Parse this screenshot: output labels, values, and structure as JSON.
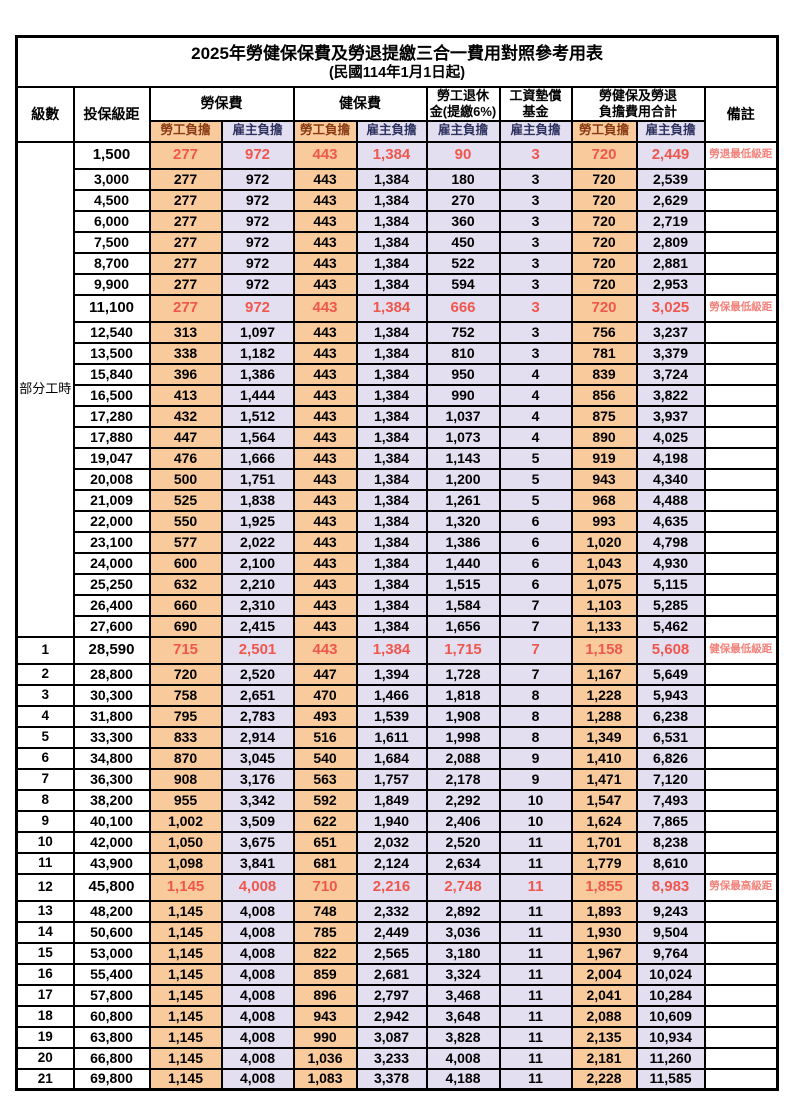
{
  "title": "2025年勞健保保費及勞退提繳三合一費用對照參考用表",
  "subtitle": "(民國114年1月1日起)",
  "colors": {
    "employee_bg": "#F9CB9C",
    "employer_bg": "#E3DFF1",
    "highlight_text": "#EF574D",
    "remark_text": "#F2837C",
    "employee_header_text": "#8A3B12",
    "employer_header_text": "#2E3260"
  },
  "header": {
    "level": "級數",
    "bracket": "投保級距",
    "labor_insurance": "勞保費",
    "health_insurance": "健保費",
    "pension_line1": "勞工退休",
    "pension_line2": "金(提繳6%)",
    "wage_fund_line1": "工資墊償",
    "wage_fund_line2": "基金",
    "total_line1": "勞健保及勞退",
    "total_line2": "負擔費用合計",
    "remark": "備註",
    "employee": "勞工負擔",
    "employer": "雇主負擔"
  },
  "part_time_label": "部分工時",
  "part_time_rowspan": 23,
  "rows": [
    {
      "level": "",
      "bracket": "1,500",
      "values": [
        "277",
        "972",
        "443",
        "1,384",
        "90",
        "3",
        "720",
        "2,449"
      ],
      "remark": "勞退最低級距",
      "hl": true
    },
    {
      "level": "",
      "bracket": "3,000",
      "values": [
        "277",
        "972",
        "443",
        "1,384",
        "180",
        "3",
        "720",
        "2,539"
      ],
      "remark": "",
      "hl": false
    },
    {
      "level": "",
      "bracket": "4,500",
      "values": [
        "277",
        "972",
        "443",
        "1,384",
        "270",
        "3",
        "720",
        "2,629"
      ],
      "remark": "",
      "hl": false
    },
    {
      "level": "",
      "bracket": "6,000",
      "values": [
        "277",
        "972",
        "443",
        "1,384",
        "360",
        "3",
        "720",
        "2,719"
      ],
      "remark": "",
      "hl": false
    },
    {
      "level": "",
      "bracket": "7,500",
      "values": [
        "277",
        "972",
        "443",
        "1,384",
        "450",
        "3",
        "720",
        "2,809"
      ],
      "remark": "",
      "hl": false
    },
    {
      "level": "",
      "bracket": "8,700",
      "values": [
        "277",
        "972",
        "443",
        "1,384",
        "522",
        "3",
        "720",
        "2,881"
      ],
      "remark": "",
      "hl": false
    },
    {
      "level": "",
      "bracket": "9,900",
      "values": [
        "277",
        "972",
        "443",
        "1,384",
        "594",
        "3",
        "720",
        "2,953"
      ],
      "remark": "",
      "hl": false
    },
    {
      "level": "",
      "bracket": "11,100",
      "values": [
        "277",
        "972",
        "443",
        "1,384",
        "666",
        "3",
        "720",
        "3,025"
      ],
      "remark": "勞保最低級距",
      "hl": true
    },
    {
      "level": "",
      "bracket": "12,540",
      "values": [
        "313",
        "1,097",
        "443",
        "1,384",
        "752",
        "3",
        "756",
        "3,237"
      ],
      "remark": "",
      "hl": false
    },
    {
      "level": "",
      "bracket": "13,500",
      "values": [
        "338",
        "1,182",
        "443",
        "1,384",
        "810",
        "3",
        "781",
        "3,379"
      ],
      "remark": "",
      "hl": false
    },
    {
      "level": "",
      "bracket": "15,840",
      "values": [
        "396",
        "1,386",
        "443",
        "1,384",
        "950",
        "4",
        "839",
        "3,724"
      ],
      "remark": "",
      "hl": false
    },
    {
      "level": "",
      "bracket": "16,500",
      "values": [
        "413",
        "1,444",
        "443",
        "1,384",
        "990",
        "4",
        "856",
        "3,822"
      ],
      "remark": "",
      "hl": false
    },
    {
      "level": "",
      "bracket": "17,280",
      "values": [
        "432",
        "1,512",
        "443",
        "1,384",
        "1,037",
        "4",
        "875",
        "3,937"
      ],
      "remark": "",
      "hl": false
    },
    {
      "level": "",
      "bracket": "17,880",
      "values": [
        "447",
        "1,564",
        "443",
        "1,384",
        "1,073",
        "4",
        "890",
        "4,025"
      ],
      "remark": "",
      "hl": false
    },
    {
      "level": "",
      "bracket": "19,047",
      "values": [
        "476",
        "1,666",
        "443",
        "1,384",
        "1,143",
        "5",
        "919",
        "4,198"
      ],
      "remark": "",
      "hl": false
    },
    {
      "level": "",
      "bracket": "20,008",
      "values": [
        "500",
        "1,751",
        "443",
        "1,384",
        "1,200",
        "5",
        "943",
        "4,340"
      ],
      "remark": "",
      "hl": false
    },
    {
      "level": "",
      "bracket": "21,009",
      "values": [
        "525",
        "1,838",
        "443",
        "1,384",
        "1,261",
        "5",
        "968",
        "4,488"
      ],
      "remark": "",
      "hl": false
    },
    {
      "level": "",
      "bracket": "22,000",
      "values": [
        "550",
        "1,925",
        "443",
        "1,384",
        "1,320",
        "6",
        "993",
        "4,635"
      ],
      "remark": "",
      "hl": false
    },
    {
      "level": "",
      "bracket": "23,100",
      "values": [
        "577",
        "2,022",
        "443",
        "1,384",
        "1,386",
        "6",
        "1,020",
        "4,798"
      ],
      "remark": "",
      "hl": false
    },
    {
      "level": "",
      "bracket": "24,000",
      "values": [
        "600",
        "2,100",
        "443",
        "1,384",
        "1,440",
        "6",
        "1,043",
        "4,930"
      ],
      "remark": "",
      "hl": false
    },
    {
      "level": "",
      "bracket": "25,250",
      "values": [
        "632",
        "2,210",
        "443",
        "1,384",
        "1,515",
        "6",
        "1,075",
        "5,115"
      ],
      "remark": "",
      "hl": false
    },
    {
      "level": "",
      "bracket": "26,400",
      "values": [
        "660",
        "2,310",
        "443",
        "1,384",
        "1,584",
        "7",
        "1,103",
        "5,285"
      ],
      "remark": "",
      "hl": false
    },
    {
      "level": "",
      "bracket": "27,600",
      "values": [
        "690",
        "2,415",
        "443",
        "1,384",
        "1,656",
        "7",
        "1,133",
        "5,462"
      ],
      "remark": "",
      "hl": false
    },
    {
      "level": "1",
      "bracket": "28,590",
      "values": [
        "715",
        "2,501",
        "443",
        "1,384",
        "1,715",
        "7",
        "1,158",
        "5,608"
      ],
      "remark": "健保最低級距",
      "hl": true
    },
    {
      "level": "2",
      "bracket": "28,800",
      "values": [
        "720",
        "2,520",
        "447",
        "1,394",
        "1,728",
        "7",
        "1,167",
        "5,649"
      ],
      "remark": "",
      "hl": false
    },
    {
      "level": "3",
      "bracket": "30,300",
      "values": [
        "758",
        "2,651",
        "470",
        "1,466",
        "1,818",
        "8",
        "1,228",
        "5,943"
      ],
      "remark": "",
      "hl": false
    },
    {
      "level": "4",
      "bracket": "31,800",
      "values": [
        "795",
        "2,783",
        "493",
        "1,539",
        "1,908",
        "8",
        "1,288",
        "6,238"
      ],
      "remark": "",
      "hl": false
    },
    {
      "level": "5",
      "bracket": "33,300",
      "values": [
        "833",
        "2,914",
        "516",
        "1,611",
        "1,998",
        "8",
        "1,349",
        "6,531"
      ],
      "remark": "",
      "hl": false
    },
    {
      "level": "6",
      "bracket": "34,800",
      "values": [
        "870",
        "3,045",
        "540",
        "1,684",
        "2,088",
        "9",
        "1,410",
        "6,826"
      ],
      "remark": "",
      "hl": false
    },
    {
      "level": "7",
      "bracket": "36,300",
      "values": [
        "908",
        "3,176",
        "563",
        "1,757",
        "2,178",
        "9",
        "1,471",
        "7,120"
      ],
      "remark": "",
      "hl": false
    },
    {
      "level": "8",
      "bracket": "38,200",
      "values": [
        "955",
        "3,342",
        "592",
        "1,849",
        "2,292",
        "10",
        "1,547",
        "7,493"
      ],
      "remark": "",
      "hl": false
    },
    {
      "level": "9",
      "bracket": "40,100",
      "values": [
        "1,002",
        "3,509",
        "622",
        "1,940",
        "2,406",
        "10",
        "1,624",
        "7,865"
      ],
      "remark": "",
      "hl": false
    },
    {
      "level": "10",
      "bracket": "42,000",
      "values": [
        "1,050",
        "3,675",
        "651",
        "2,032",
        "2,520",
        "11",
        "1,701",
        "8,238"
      ],
      "remark": "",
      "hl": false
    },
    {
      "level": "11",
      "bracket": "43,900",
      "values": [
        "1,098",
        "3,841",
        "681",
        "2,124",
        "2,634",
        "11",
        "1,779",
        "8,610"
      ],
      "remark": "",
      "hl": false
    },
    {
      "level": "12",
      "bracket": "45,800",
      "values": [
        "1,145",
        "4,008",
        "710",
        "2,216",
        "2,748",
        "11",
        "1,855",
        "8,983"
      ],
      "remark": "勞保最高級距",
      "hl": true
    },
    {
      "level": "13",
      "bracket": "48,200",
      "values": [
        "1,145",
        "4,008",
        "748",
        "2,332",
        "2,892",
        "11",
        "1,893",
        "9,243"
      ],
      "remark": "",
      "hl": false
    },
    {
      "level": "14",
      "bracket": "50,600",
      "values": [
        "1,145",
        "4,008",
        "785",
        "2,449",
        "3,036",
        "11",
        "1,930",
        "9,504"
      ],
      "remark": "",
      "hl": false
    },
    {
      "level": "15",
      "bracket": "53,000",
      "values": [
        "1,145",
        "4,008",
        "822",
        "2,565",
        "3,180",
        "11",
        "1,967",
        "9,764"
      ],
      "remark": "",
      "hl": false
    },
    {
      "level": "16",
      "bracket": "55,400",
      "values": [
        "1,145",
        "4,008",
        "859",
        "2,681",
        "3,324",
        "11",
        "2,004",
        "10,024"
      ],
      "remark": "",
      "hl": false
    },
    {
      "level": "17",
      "bracket": "57,800",
      "values": [
        "1,145",
        "4,008",
        "896",
        "2,797",
        "3,468",
        "11",
        "2,041",
        "10,284"
      ],
      "remark": "",
      "hl": false
    },
    {
      "level": "18",
      "bracket": "60,800",
      "values": [
        "1,145",
        "4,008",
        "943",
        "2,942",
        "3,648",
        "11",
        "2,088",
        "10,609"
      ],
      "remark": "",
      "hl": false
    },
    {
      "level": "19",
      "bracket": "63,800",
      "values": [
        "1,145",
        "4,008",
        "990",
        "3,087",
        "3,828",
        "11",
        "2,135",
        "10,934"
      ],
      "remark": "",
      "hl": false
    },
    {
      "level": "20",
      "bracket": "66,800",
      "values": [
        "1,145",
        "4,008",
        "1,036",
        "3,233",
        "4,008",
        "11",
        "2,181",
        "11,260"
      ],
      "remark": "",
      "hl": false
    },
    {
      "level": "21",
      "bracket": "69,800",
      "values": [
        "1,145",
        "4,008",
        "1,083",
        "3,378",
        "4,188",
        "11",
        "2,228",
        "11,585"
      ],
      "remark": "",
      "hl": false
    }
  ],
  "value_column_styles": [
    "emp",
    "er",
    "emp",
    "er",
    "er",
    "er",
    "emp",
    "er"
  ]
}
